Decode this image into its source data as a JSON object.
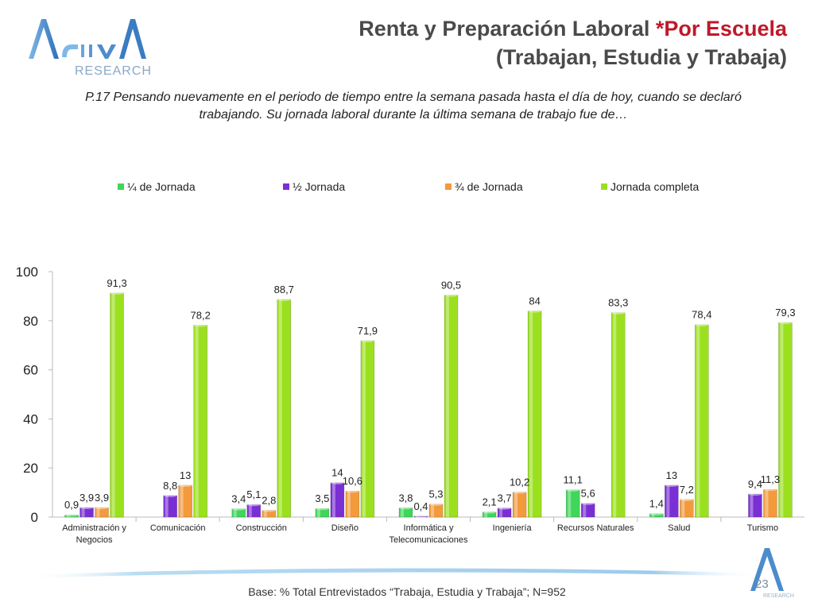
{
  "header": {
    "title_line1_main": "Renta y Preparación Laboral ",
    "title_line1_accent": "*Por Escuela",
    "title_line2": "(Trabajan, Estudia y Trabaja)",
    "logo_text_main": "ACTIVA",
    "logo_text_sub": "RESEARCH"
  },
  "question": "P.17 Pensando nuevamente en el periodo de tiempo entre la semana pasada hasta el día de hoy, cuando se declaró trabajando. Su jornada laboral durante la última semana de trabajo fue de…",
  "footer": {
    "base": "Base: % Total Entrevistados “Trabaja, Estudia y Trabaja”; N=952",
    "page_number": "23",
    "small_logo_text": "RESEARCH"
  },
  "colors": {
    "quarter": "#3fd65a",
    "half": "#7a2fd4",
    "three_quarter": "#f29a3c",
    "full": "#9be01f",
    "title_accent": "#c0182a"
  },
  "chart_data": {
    "type": "bar",
    "categories": [
      [
        "Administración y",
        "Negocios"
      ],
      [
        "Comunicación"
      ],
      [
        "Construcción"
      ],
      [
        "Diseño"
      ],
      [
        "Informática y",
        "Telecomunicaciones"
      ],
      [
        "Ingeniería"
      ],
      [
        "Recursos Naturales"
      ],
      [
        "Salud"
      ],
      [
        "Turismo"
      ]
    ],
    "series": [
      {
        "name": "¼ de Jornada",
        "color": "#3fd65a",
        "values": [
          0.9,
          null,
          3.4,
          3.5,
          3.8,
          2.1,
          11.1,
          1.4,
          null
        ],
        "labels": [
          "0,9",
          "",
          "3,4",
          "3,5",
          "3,8",
          "2,1",
          "11,1",
          "1,4",
          ""
        ]
      },
      {
        "name": "½ Jornada",
        "color": "#7a2fd4",
        "values": [
          3.9,
          8.8,
          5.1,
          14,
          0.4,
          3.7,
          5.6,
          13,
          9.4
        ],
        "labels": [
          "3,9",
          "8,8",
          "5,1",
          "14",
          "0,4",
          "3,7",
          "5,6",
          "13",
          "9,4"
        ]
      },
      {
        "name": "¾ de Jornada",
        "color": "#f29a3c",
        "values": [
          3.9,
          13,
          2.8,
          10.6,
          5.3,
          10.2,
          null,
          7.2,
          11.3
        ],
        "labels": [
          "3,9",
          "13",
          "2,8",
          "10,6",
          "5,3",
          "10,2",
          "",
          "7,2",
          "11,3"
        ]
      },
      {
        "name": "Jornada completa",
        "color": "#9be01f",
        "values": [
          91.3,
          78.2,
          88.7,
          71.9,
          90.5,
          84,
          83.3,
          78.4,
          79.3
        ],
        "labels": [
          "91,3",
          "78,2",
          "88,7",
          "71,9",
          "90,5",
          "84",
          "83,3",
          "78,4",
          "79,3"
        ]
      }
    ],
    "yticks": [
      "0",
      "20",
      "40",
      "60",
      "80",
      "100"
    ],
    "ylim": [
      0,
      100
    ],
    "legend_position": "top",
    "grid": false
  }
}
